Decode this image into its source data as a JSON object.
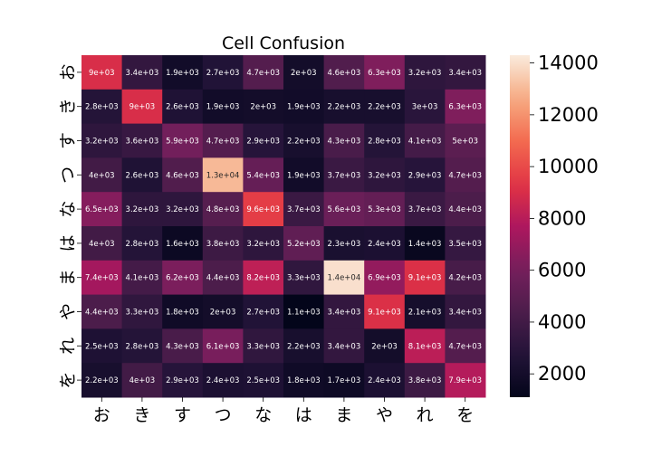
{
  "chart_data": {
    "type": "heatmap",
    "title": "Cell Confusion",
    "xlabel": "",
    "ylabel": "",
    "x_categories": [
      "お",
      "き",
      "す",
      "つ",
      "な",
      "は",
      "ま",
      "や",
      "れ",
      "を"
    ],
    "y_categories": [
      "お",
      "き",
      "す",
      "つ",
      "な",
      "は",
      "ま",
      "や",
      "れ",
      "を"
    ],
    "values": [
      [
        9000,
        3400,
        1900,
        2700,
        4700,
        2000,
        4600,
        6300,
        3200,
        3400
      ],
      [
        2800,
        9000,
        2600,
        1900,
        2000,
        1900,
        2200,
        2200,
        3000,
        6300
      ],
      [
        3200,
        3600,
        5900,
        4700,
        2900,
        2200,
        4300,
        2800,
        4100,
        5000
      ],
      [
        4000,
        2600,
        4600,
        13000,
        5400,
        1900,
        3700,
        3200,
        2900,
        4700
      ],
      [
        6500,
        3200,
        3200,
        4800,
        9600,
        3700,
        5600,
        5300,
        3700,
        4400
      ],
      [
        4000,
        2800,
        1600,
        3800,
        3200,
        5200,
        2300,
        2400,
        1400,
        3500
      ],
      [
        7400,
        4100,
        6200,
        4400,
        8200,
        3300,
        14000,
        6900,
        9100,
        4200
      ],
      [
        4400,
        3300,
        1800,
        2000,
        2700,
        1100,
        3400,
        9100,
        2100,
        3400
      ],
      [
        2500,
        2800,
        4300,
        6100,
        3300,
        2200,
        3400,
        2000,
        8100,
        4700
      ],
      [
        2200,
        4000,
        2900,
        2400,
        2500,
        1800,
        1700,
        2400,
        3800,
        7900
      ]
    ],
    "cell_labels": [
      [
        "9e+03",
        "3.4e+03",
        "1.9e+03",
        "2.7e+03",
        "4.7e+03",
        "2e+03",
        "4.6e+03",
        "6.3e+03",
        "3.2e+03",
        "3.4e+03"
      ],
      [
        "2.8e+03",
        "9e+03",
        "2.6e+03",
        "1.9e+03",
        "2e+03",
        "1.9e+03",
        "2.2e+03",
        "2.2e+03",
        "3e+03",
        "6.3e+03"
      ],
      [
        "3.2e+03",
        "3.6e+03",
        "5.9e+03",
        "4.7e+03",
        "2.9e+03",
        "2.2e+03",
        "4.3e+03",
        "2.8e+03",
        "4.1e+03",
        "5e+03"
      ],
      [
        "4e+03",
        "2.6e+03",
        "4.6e+03",
        "1.3e+04",
        "5.4e+03",
        "1.9e+03",
        "3.7e+03",
        "3.2e+03",
        "2.9e+03",
        "4.7e+03"
      ],
      [
        "6.5e+03",
        "3.2e+03",
        "3.2e+03",
        "4.8e+03",
        "9.6e+03",
        "3.7e+03",
        "5.6e+03",
        "5.3e+03",
        "3.7e+03",
        "4.4e+03"
      ],
      [
        "4e+03",
        "2.8e+03",
        "1.6e+03",
        "3.8e+03",
        "3.2e+03",
        "5.2e+03",
        "2.3e+03",
        "2.4e+03",
        "1.4e+03",
        "3.5e+03"
      ],
      [
        "7.4e+03",
        "4.1e+03",
        "6.2e+03",
        "4.4e+03",
        "8.2e+03",
        "3.3e+03",
        "1.4e+04",
        "6.9e+03",
        "9.1e+03",
        "4.2e+03"
      ],
      [
        "4.4e+03",
        "3.3e+03",
        "1.8e+03",
        "2e+03",
        "2.7e+03",
        "1.1e+03",
        "3.4e+03",
        "9.1e+03",
        "2.1e+03",
        "3.4e+03"
      ],
      [
        "2.5e+03",
        "2.8e+03",
        "4.3e+03",
        "6.1e+03",
        "3.3e+03",
        "2.2e+03",
        "3.4e+03",
        "2e+03",
        "8.1e+03",
        "4.7e+03"
      ],
      [
        "2.2e+03",
        "4e+03",
        "2.9e+03",
        "2.4e+03",
        "2.5e+03",
        "1.8e+03",
        "1.7e+03",
        "2.4e+03",
        "3.8e+03",
        "7.9e+03"
      ]
    ],
    "colorbar": {
      "range": [
        1100,
        14300
      ],
      "ticks": [
        2000,
        4000,
        6000,
        8000,
        10000,
        12000,
        14000
      ],
      "tick_labels": [
        "2000",
        "4000",
        "6000",
        "8000",
        "10000",
        "12000",
        "14000"
      ]
    },
    "colormap": "rocket",
    "grid": false,
    "legend": "colorbar-right"
  }
}
